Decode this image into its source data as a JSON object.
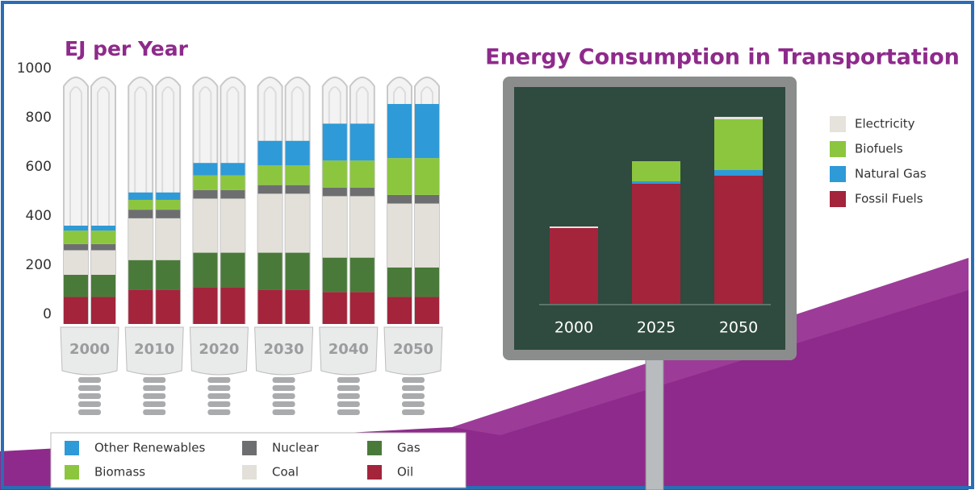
{
  "chart_data": [
    {
      "type": "bar",
      "stacked": true,
      "title": "EJ per Year",
      "categories": [
        "2000",
        "2010",
        "2020",
        "2030",
        "2040",
        "2050"
      ],
      "series": [
        {
          "name": "Oil",
          "color": "#a3243b",
          "values": [
            110,
            140,
            150,
            140,
            130,
            110
          ]
        },
        {
          "name": "Gas",
          "color": "#4a7a3a",
          "values": [
            90,
            120,
            140,
            150,
            140,
            120
          ]
        },
        {
          "name": "Coal",
          "color": "#e3e0d9",
          "values": [
            100,
            170,
            220,
            240,
            250,
            260
          ]
        },
        {
          "name": "Nuclear",
          "color": "#6d6e70",
          "values": [
            25,
            35,
            35,
            35,
            35,
            35
          ]
        },
        {
          "name": "Biomass",
          "color": "#8cc63f",
          "values": [
            55,
            40,
            60,
            80,
            110,
            150
          ]
        },
        {
          "name": "Other Renewables",
          "color": "#2e9ad8",
          "values": [
            20,
            30,
            50,
            100,
            150,
            220
          ]
        }
      ],
      "ylim": [
        0,
        1000
      ],
      "yticks": [
        0,
        200,
        400,
        600,
        800,
        1000
      ]
    },
    {
      "type": "bar",
      "stacked": true,
      "title": "Energy Consumption in Transportation",
      "categories": [
        "2000",
        "2025",
        "2050"
      ],
      "series": [
        {
          "name": "Fossil Fuels",
          "color": "#a3243b",
          "values": [
            95,
            150,
            160
          ]
        },
        {
          "name": "Natural Gas",
          "color": "#2e9ad8",
          "values": [
            0,
            3,
            7
          ]
        },
        {
          "name": "Biofuels",
          "color": "#8cc63f",
          "values": [
            0,
            25,
            63
          ]
        },
        {
          "name": "Electricity",
          "color": "#e6e2dc",
          "values": [
            2,
            0,
            3
          ]
        }
      ],
      "ylim": [
        0,
        240
      ]
    }
  ]
}
